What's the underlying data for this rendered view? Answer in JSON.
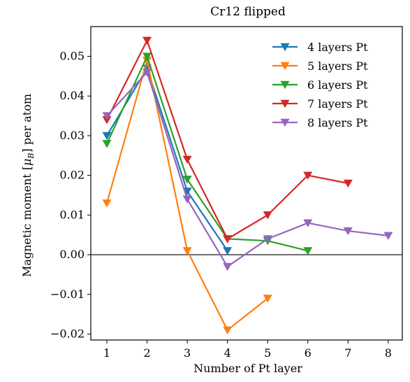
{
  "chart_data": {
    "type": "line",
    "title": "Cr12 flipped",
    "xlabel": "Number of Pt layer",
    "ylabel": "Magnetic moment [μ_B] per atom",
    "xlim": [
      0.6,
      8.35
    ],
    "ylim": [
      -0.0215,
      0.0575
    ],
    "xticks": [
      1,
      2,
      3,
      4,
      5,
      6,
      7,
      8
    ],
    "xtick_labels": [
      "1",
      "2",
      "3",
      "4",
      "5",
      "6",
      "7",
      "8"
    ],
    "yticks": [
      -0.02,
      -0.01,
      0.0,
      0.01,
      0.02,
      0.03,
      0.04,
      0.05
    ],
    "ytick_labels": [
      "−0.02",
      "−0.01",
      "0.00",
      "0.01",
      "0.02",
      "0.03",
      "0.04",
      "0.05"
    ],
    "zero_line": true,
    "grid": false,
    "legend_position": "top-right",
    "marker": "triangle-down",
    "series": [
      {
        "name": "4 layers Pt",
        "color": "#1f77b4",
        "x": [
          1,
          2,
          3,
          4
        ],
        "y": [
          0.03,
          0.047,
          0.016,
          0.001
        ]
      },
      {
        "name": "5 layers Pt",
        "color": "#ff7f0e",
        "x": [
          1,
          2,
          3,
          4,
          5
        ],
        "y": [
          0.013,
          0.049,
          0.001,
          -0.019,
          -0.011
        ]
      },
      {
        "name": "6 layers Pt",
        "color": "#2ca02c",
        "x": [
          1,
          2,
          3,
          4,
          5,
          6
        ],
        "y": [
          0.028,
          0.05,
          0.019,
          0.004,
          0.0035,
          0.001
        ]
      },
      {
        "name": "7 layers Pt",
        "color": "#d62728",
        "x": [
          1,
          2,
          3,
          4,
          5,
          6,
          7
        ],
        "y": [
          0.034,
          0.054,
          0.024,
          0.004,
          0.01,
          0.02,
          0.018
        ]
      },
      {
        "name": "8 layers Pt",
        "color": "#9467bd",
        "x": [
          1,
          2,
          3,
          4,
          5,
          6,
          7,
          8
        ],
        "y": [
          0.035,
          0.046,
          0.014,
          -0.003,
          0.004,
          0.008,
          0.006,
          0.0048
        ]
      }
    ]
  }
}
